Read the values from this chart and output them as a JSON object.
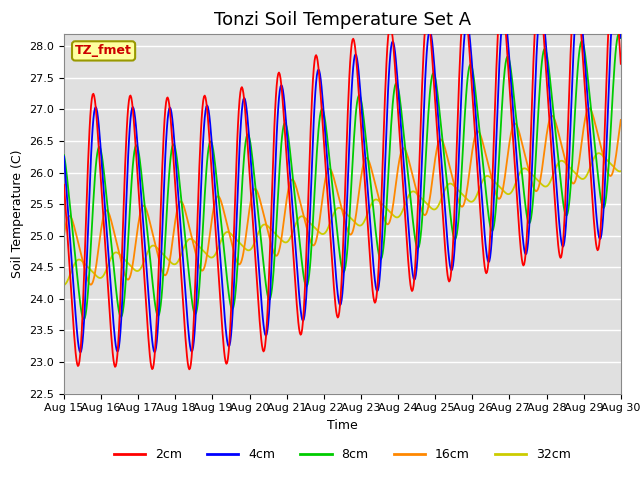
{
  "title": "Tonzi Soil Temperature Set A",
  "xlabel": "Time",
  "ylabel": "Soil Temperature (C)",
  "annotation": "TZ_fmet",
  "ylim": [
    22.5,
    28.2
  ],
  "xlim": [
    0,
    360
  ],
  "colors": {
    "2cm": "#FF0000",
    "4cm": "#0000FF",
    "8cm": "#00CC00",
    "16cm": "#FF8800",
    "32cm": "#CCCC00"
  },
  "legend_labels": [
    "2cm",
    "4cm",
    "8cm",
    "16cm",
    "32cm"
  ],
  "x_tick_labels": [
    "Aug 15",
    "Aug 16",
    "Aug 17",
    "Aug 18",
    "Aug 19",
    "Aug 20",
    "Aug 21",
    "Aug 22",
    "Aug 23",
    "Aug 24",
    "Aug 25",
    "Aug 26",
    "Aug 27",
    "Aug 28",
    "Aug 29",
    "Aug 30"
  ],
  "background_color": "#E0E0E0",
  "grid_color": "#FFFFFF",
  "title_fontsize": 13,
  "label_fontsize": 9,
  "tick_fontsize": 8
}
